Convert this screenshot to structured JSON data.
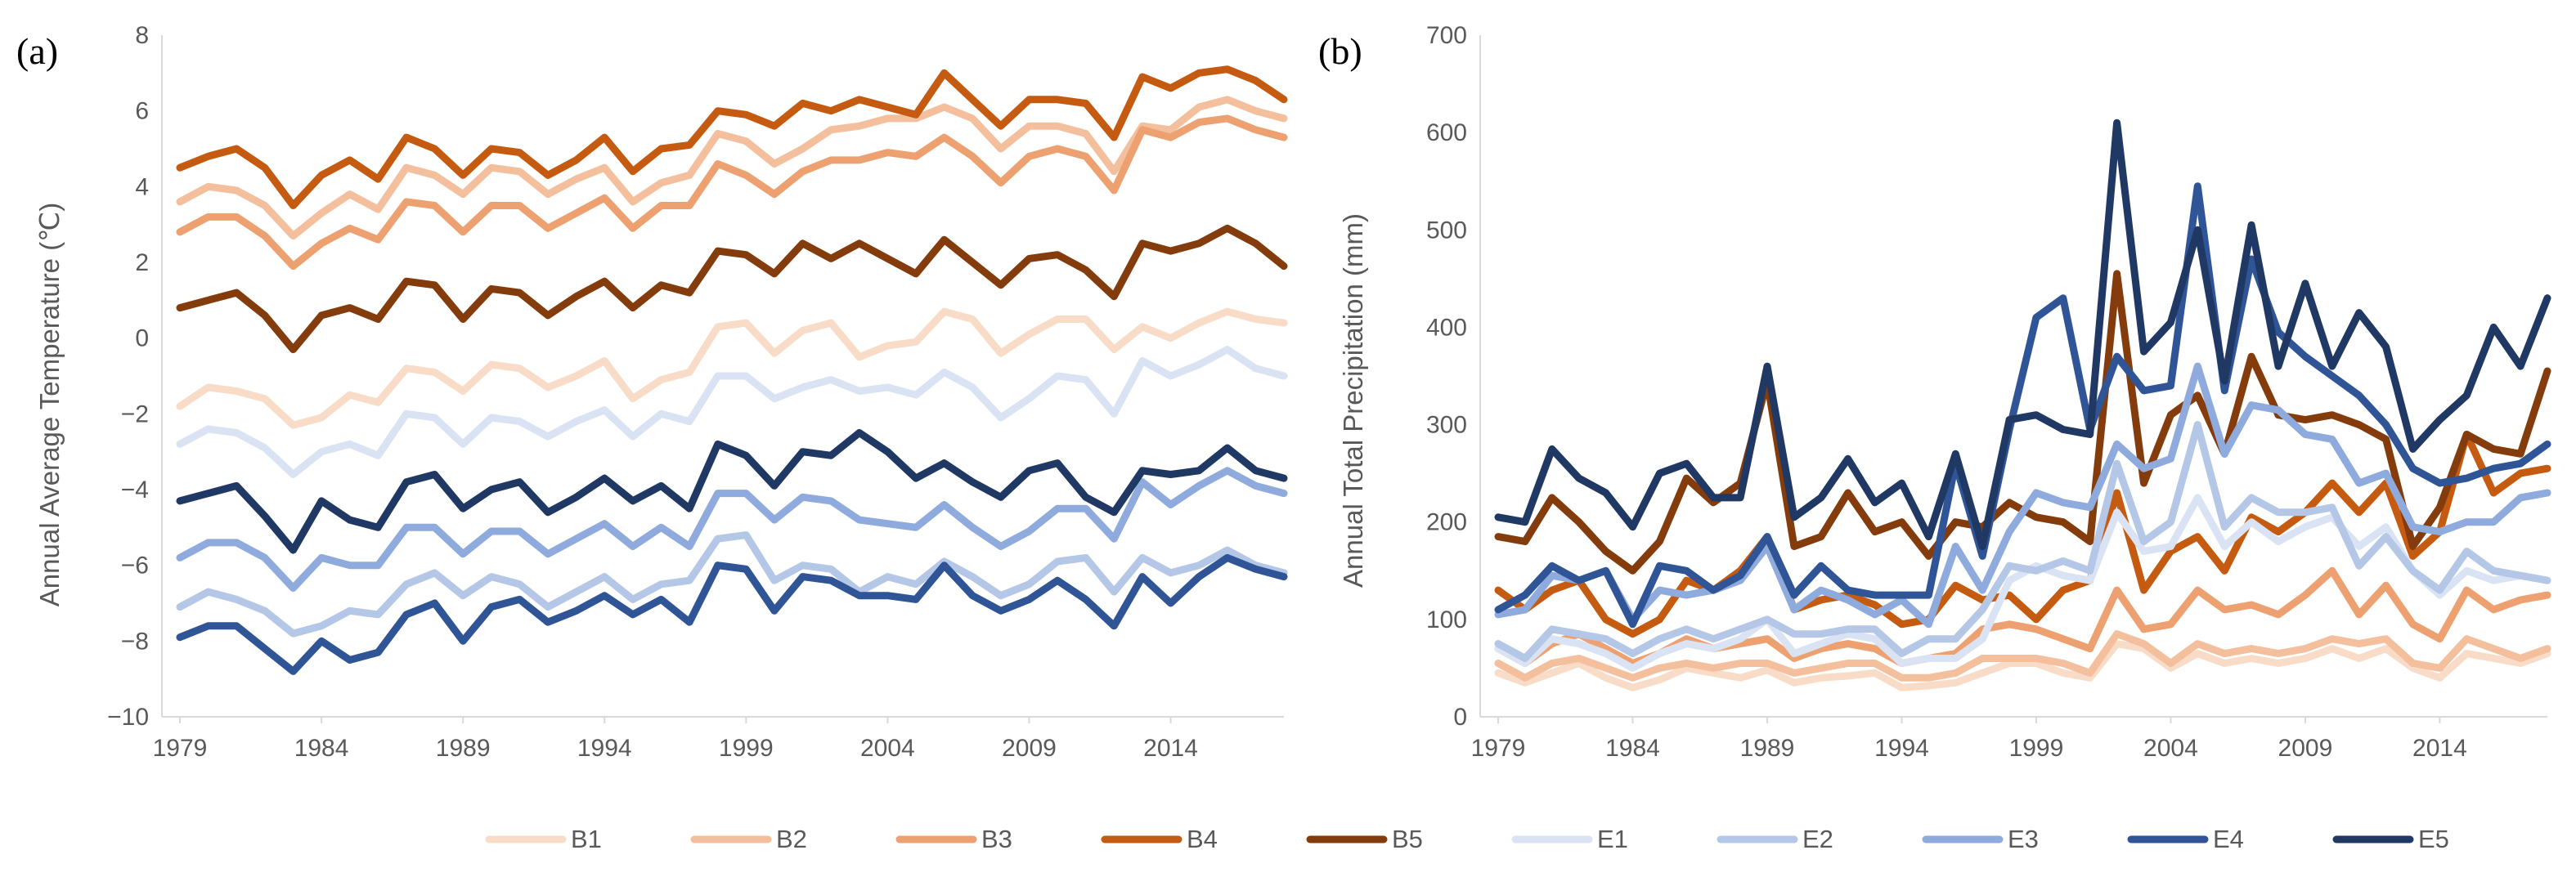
{
  "chart_data": [
    {
      "type": "line",
      "panel_label": "(a)",
      "title": "",
      "xlabel": "",
      "ylabel": "Annual Average Temperature (℃)",
      "xlim": [
        1979,
        2018
      ],
      "ylim": [
        -10,
        8
      ],
      "xticks": [
        1979,
        1984,
        1989,
        1994,
        1999,
        2004,
        2009,
        2014
      ],
      "xtick_labels": [
        "1979",
        "1984",
        "1989",
        "1994",
        "1999",
        "2004",
        "2009",
        "2014"
      ],
      "yticks": [
        -10,
        -8,
        -6,
        -4,
        -2,
        0,
        2,
        4,
        6,
        8
      ],
      "ytick_labels": [
        "−10",
        "−8",
        "−6",
        "−4",
        "−2",
        "0",
        "2",
        "4",
        "6",
        "8"
      ],
      "grid": false,
      "x": [
        1979,
        1980,
        1981,
        1982,
        1983,
        1984,
        1985,
        1986,
        1987,
        1988,
        1989,
        1990,
        1991,
        1992,
        1993,
        1994,
        1995,
        1996,
        1997,
        1998,
        1999,
        2000,
        2001,
        2002,
        2003,
        2004,
        2005,
        2006,
        2007,
        2008,
        2009,
        2010,
        2011,
        2012,
        2013,
        2014,
        2015,
        2016,
        2017,
        2018
      ],
      "series": [
        {
          "name": "B1",
          "values": [
            -1.8,
            -1.3,
            -1.4,
            -1.6,
            -2.3,
            -2.1,
            -1.5,
            -1.7,
            -0.8,
            -0.9,
            -1.4,
            -0.7,
            -0.8,
            -1.3,
            -1.0,
            -0.6,
            -1.6,
            -1.1,
            -0.9,
            0.3,
            0.4,
            -0.4,
            0.2,
            0.4,
            -0.5,
            -0.2,
            -0.1,
            0.7,
            0.5,
            -0.4,
            0.1,
            0.5,
            0.5,
            -0.3,
            0.3,
            0.0,
            0.4,
            0.7,
            0.5,
            0.4
          ]
        },
        {
          "name": "B2",
          "values": [
            3.6,
            4.0,
            3.9,
            3.5,
            2.7,
            3.3,
            3.8,
            3.4,
            4.5,
            4.3,
            3.8,
            4.5,
            4.4,
            3.8,
            4.2,
            4.5,
            3.6,
            4.1,
            4.3,
            5.4,
            5.2,
            4.6,
            5.0,
            5.5,
            5.6,
            5.8,
            5.8,
            6.1,
            5.8,
            5.0,
            5.6,
            5.6,
            5.4,
            4.4,
            5.6,
            5.5,
            6.1,
            6.3,
            6.0,
            5.8
          ]
        },
        {
          "name": "B3",
          "values": [
            2.8,
            3.2,
            3.2,
            2.7,
            1.9,
            2.5,
            2.9,
            2.6,
            3.6,
            3.5,
            2.8,
            3.5,
            3.5,
            2.9,
            3.3,
            3.7,
            2.9,
            3.5,
            3.5,
            4.6,
            4.3,
            3.8,
            4.4,
            4.7,
            4.7,
            4.9,
            4.8,
            5.3,
            4.8,
            4.1,
            4.8,
            5.0,
            4.8,
            3.9,
            5.5,
            5.3,
            5.7,
            5.8,
            5.5,
            5.3
          ]
        },
        {
          "name": "B4",
          "values": [
            4.5,
            4.8,
            5.0,
            4.5,
            3.5,
            4.3,
            4.7,
            4.2,
            5.3,
            5.0,
            4.3,
            5.0,
            4.9,
            4.3,
            4.7,
            5.3,
            4.4,
            5.0,
            5.1,
            6.0,
            5.9,
            5.6,
            6.2,
            6.0,
            6.3,
            6.1,
            5.9,
            7.0,
            6.3,
            5.6,
            6.3,
            6.3,
            6.2,
            5.3,
            6.9,
            6.6,
            7.0,
            7.1,
            6.8,
            6.3
          ]
        },
        {
          "name": "B5",
          "values": [
            0.8,
            1.0,
            1.2,
            0.6,
            -0.3,
            0.6,
            0.8,
            0.5,
            1.5,
            1.4,
            0.5,
            1.3,
            1.2,
            0.6,
            1.1,
            1.5,
            0.8,
            1.4,
            1.2,
            2.3,
            2.2,
            1.7,
            2.5,
            2.1,
            2.5,
            2.1,
            1.7,
            2.6,
            2.0,
            1.4,
            2.1,
            2.2,
            1.8,
            1.1,
            2.5,
            2.3,
            2.5,
            2.9,
            2.5,
            1.9
          ]
        },
        {
          "name": "E1",
          "values": [
            -2.8,
            -2.4,
            -2.5,
            -2.9,
            -3.6,
            -3.0,
            -2.8,
            -3.1,
            -2.0,
            -2.1,
            -2.8,
            -2.1,
            -2.2,
            -2.6,
            -2.2,
            -1.9,
            -2.6,
            -2.0,
            -2.2,
            -1.0,
            -1.0,
            -1.6,
            -1.3,
            -1.1,
            -1.4,
            -1.3,
            -1.5,
            -0.9,
            -1.3,
            -2.1,
            -1.6,
            -1.0,
            -1.1,
            -2.0,
            -0.6,
            -1.0,
            -0.7,
            -0.3,
            -0.8,
            -1.0
          ]
        },
        {
          "name": "E2",
          "values": [
            -7.1,
            -6.7,
            -6.9,
            -7.2,
            -7.8,
            -7.6,
            -7.2,
            -7.3,
            -6.5,
            -6.2,
            -6.8,
            -6.3,
            -6.5,
            -7.1,
            -6.7,
            -6.3,
            -6.9,
            -6.5,
            -6.4,
            -5.3,
            -5.2,
            -6.4,
            -6.0,
            -6.1,
            -6.7,
            -6.3,
            -6.5,
            -5.9,
            -6.3,
            -6.8,
            -6.5,
            -5.9,
            -5.8,
            -6.7,
            -5.8,
            -6.2,
            -6.0,
            -5.6,
            -6.0,
            -6.2
          ]
        },
        {
          "name": "E3",
          "values": [
            -5.8,
            -5.4,
            -5.4,
            -5.8,
            -6.6,
            -5.8,
            -6.0,
            -6.0,
            -5.0,
            -5.0,
            -5.7,
            -5.1,
            -5.1,
            -5.7,
            -5.3,
            -4.9,
            -5.5,
            -5.0,
            -5.5,
            -4.1,
            -4.1,
            -4.8,
            -4.2,
            -4.3,
            -4.8,
            -4.9,
            -5.0,
            -4.4,
            -5.0,
            -5.5,
            -5.1,
            -4.5,
            -4.5,
            -5.3,
            -3.8,
            -4.4,
            -3.9,
            -3.5,
            -3.9,
            -4.1
          ]
        },
        {
          "name": "E4",
          "values": [
            -7.9,
            -7.6,
            -7.6,
            -8.2,
            -8.8,
            -8.0,
            -8.5,
            -8.3,
            -7.3,
            -7.0,
            -8.0,
            -7.1,
            -6.9,
            -7.5,
            -7.2,
            -6.8,
            -7.3,
            -6.9,
            -7.5,
            -6.0,
            -6.1,
            -7.2,
            -6.3,
            -6.4,
            -6.8,
            -6.8,
            -6.9,
            -6.0,
            -6.8,
            -7.2,
            -6.9,
            -6.4,
            -6.9,
            -7.6,
            -6.3,
            -7.0,
            -6.3,
            -5.8,
            -6.1,
            -6.3
          ]
        },
        {
          "name": "E5",
          "values": [
            -4.3,
            -4.1,
            -3.9,
            -4.7,
            -5.6,
            -4.3,
            -4.8,
            -5.0,
            -3.8,
            -3.6,
            -4.5,
            -4.0,
            -3.8,
            -4.6,
            -4.2,
            -3.7,
            -4.3,
            -3.9,
            -4.5,
            -2.8,
            -3.1,
            -3.9,
            -3.0,
            -3.1,
            -2.5,
            -3.0,
            -3.7,
            -3.3,
            -3.8,
            -4.2,
            -3.5,
            -3.3,
            -4.2,
            -4.6,
            -3.5,
            -3.6,
            -3.5,
            -2.9,
            -3.5,
            -3.7
          ]
        }
      ]
    },
    {
      "type": "line",
      "panel_label": "(b)",
      "title": "",
      "xlabel": "",
      "ylabel": "Annual Total Precipitation (mm)",
      "xlim": [
        1979,
        2018
      ],
      "ylim": [
        0,
        700
      ],
      "xticks": [
        1979,
        1984,
        1989,
        1994,
        1999,
        2004,
        2009,
        2014
      ],
      "xtick_labels": [
        "1979",
        "1984",
        "1989",
        "1994",
        "1999",
        "2004",
        "2009",
        "2014"
      ],
      "yticks": [
        0,
        100,
        200,
        300,
        400,
        500,
        600,
        700
      ],
      "ytick_labels": [
        "0",
        "100",
        "200",
        "300",
        "400",
        "500",
        "600",
        "700"
      ],
      "grid": false,
      "x": [
        1979,
        1980,
        1981,
        1982,
        1983,
        1984,
        1985,
        1986,
        1987,
        1988,
        1989,
        1990,
        1991,
        1992,
        1993,
        1994,
        1995,
        1996,
        1997,
        1998,
        1999,
        2000,
        2001,
        2002,
        2003,
        2004,
        2005,
        2006,
        2007,
        2008,
        2009,
        2010,
        2011,
        2012,
        2013,
        2014,
        2015,
        2016,
        2017,
        2018
      ],
      "series": [
        {
          "name": "B1",
          "values": [
            45,
            35,
            45,
            55,
            40,
            30,
            38,
            50,
            45,
            40,
            48,
            35,
            40,
            42,
            45,
            30,
            32,
            35,
            45,
            55,
            55,
            45,
            40,
            75,
            70,
            50,
            65,
            55,
            60,
            55,
            60,
            70,
            60,
            70,
            50,
            40,
            65,
            60,
            55,
            65
          ]
        },
        {
          "name": "B2",
          "values": [
            55,
            40,
            55,
            60,
            50,
            40,
            50,
            55,
            50,
            55,
            55,
            45,
            50,
            55,
            55,
            40,
            40,
            45,
            60,
            60,
            60,
            55,
            45,
            85,
            75,
            55,
            75,
            65,
            70,
            65,
            70,
            80,
            75,
            80,
            55,
            50,
            80,
            70,
            60,
            70
          ]
        },
        {
          "name": "B3",
          "values": [
            70,
            55,
            75,
            85,
            70,
            55,
            65,
            80,
            70,
            75,
            80,
            60,
            70,
            75,
            70,
            55,
            60,
            65,
            90,
            95,
            90,
            80,
            70,
            130,
            90,
            95,
            130,
            110,
            115,
            105,
            125,
            150,
            105,
            135,
            95,
            80,
            130,
            110,
            120,
            125
          ]
        },
        {
          "name": "B4",
          "values": [
            130,
            110,
            130,
            140,
            100,
            85,
            100,
            140,
            130,
            150,
            185,
            110,
            120,
            125,
            115,
            95,
            100,
            135,
            120,
            125,
            100,
            130,
            140,
            230,
            130,
            170,
            185,
            150,
            205,
            190,
            210,
            240,
            210,
            240,
            165,
            190,
            290,
            230,
            250,
            255
          ]
        },
        {
          "name": "B5",
          "values": [
            185,
            180,
            225,
            200,
            170,
            150,
            180,
            245,
            220,
            240,
            345,
            175,
            185,
            230,
            190,
            200,
            165,
            200,
            195,
            220,
            205,
            200,
            180,
            455,
            240,
            310,
            330,
            270,
            370,
            310,
            305,
            310,
            300,
            285,
            175,
            215,
            290,
            275,
            270,
            355
          ]
        },
        {
          "name": "E1",
          "values": [
            70,
            55,
            80,
            75,
            65,
            50,
            65,
            75,
            70,
            80,
            100,
            65,
            75,
            85,
            80,
            55,
            60,
            60,
            80,
            140,
            155,
            145,
            140,
            210,
            170,
            175,
            225,
            175,
            200,
            180,
            195,
            205,
            175,
            195,
            150,
            125,
            150,
            140,
            145,
            140
          ]
        },
        {
          "name": "E2",
          "values": [
            75,
            60,
            90,
            85,
            80,
            65,
            80,
            90,
            80,
            90,
            100,
            85,
            85,
            90,
            90,
            65,
            80,
            80,
            110,
            155,
            150,
            160,
            150,
            260,
            180,
            200,
            300,
            195,
            225,
            210,
            210,
            215,
            155,
            185,
            150,
            130,
            170,
            150,
            145,
            140
          ]
        },
        {
          "name": "E3",
          "values": [
            105,
            110,
            145,
            140,
            150,
            100,
            130,
            125,
            130,
            140,
            175,
            110,
            130,
            120,
            105,
            120,
            95,
            175,
            130,
            190,
            230,
            220,
            215,
            280,
            255,
            265,
            360,
            270,
            320,
            315,
            290,
            285,
            240,
            250,
            195,
            190,
            200,
            200,
            225,
            230
          ]
        },
        {
          "name": "E4",
          "values": [
            110,
            125,
            155,
            140,
            150,
            95,
            155,
            150,
            130,
            145,
            185,
            125,
            155,
            130,
            125,
            125,
            125,
            260,
            165,
            295,
            410,
            430,
            295,
            370,
            335,
            340,
            545,
            335,
            470,
            395,
            370,
            350,
            330,
            300,
            255,
            240,
            245,
            255,
            260,
            280
          ]
        },
        {
          "name": "E5",
          "values": [
            205,
            200,
            275,
            245,
            230,
            195,
            250,
            260,
            225,
            225,
            360,
            205,
            225,
            265,
            220,
            240,
            185,
            270,
            175,
            305,
            310,
            295,
            290,
            610,
            375,
            405,
            500,
            345,
            505,
            360,
            445,
            360,
            415,
            380,
            275,
            305,
            330,
            400,
            360,
            430
          ]
        }
      ],
      "legend": {
        "placement": "bottom-center",
        "entries": [
          "B1",
          "B2",
          "B3",
          "B4",
          "B5",
          "E1",
          "E2",
          "E3",
          "E4",
          "E5"
        ]
      },
      "colors": {
        "B1": "#f9dcc8",
        "B2": "#f4bf9c",
        "B3": "#eda070",
        "B4": "#c55a11",
        "B5": "#843c0c",
        "E1": "#dae3f3",
        "E2": "#b4c7e7",
        "E3": "#8faadc",
        "E4": "#2f5597",
        "E5": "#203864",
        "axis": "#d9d9d9",
        "text": "#595959"
      }
    }
  ]
}
